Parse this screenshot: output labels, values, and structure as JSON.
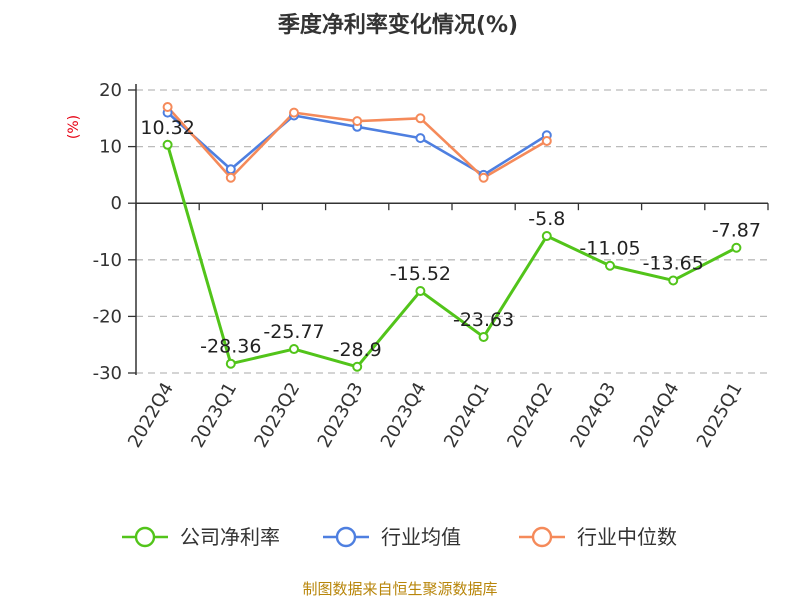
{
  "chart_data": {
    "type": "line",
    "title": "季度净利率变化情况(%)",
    "ylabel": "(%)",
    "xlabel": "",
    "ylim": [
      -30,
      20
    ],
    "yticks": [
      20,
      10,
      0,
      -10,
      -20,
      -30
    ],
    "categories": [
      "2022Q4",
      "2023Q1",
      "2023Q2",
      "2023Q3",
      "2023Q4",
      "2024Q1",
      "2024Q2",
      "2024Q3",
      "2024Q4",
      "2025Q1"
    ],
    "grid": true,
    "legend_position": "bottom",
    "series": [
      {
        "name": "公司净利率",
        "color": "#52c41a",
        "values": [
          10.32,
          -28.36,
          -25.77,
          -28.9,
          -15.52,
          -23.63,
          -5.8,
          -11.05,
          -13.65,
          -7.87
        ],
        "labels": [
          "10.32",
          "-28.36",
          "-25.77",
          "-28.9",
          "-15.52",
          "-23.63",
          "-5.8",
          "-11.05",
          "-13.65",
          "-7.87"
        ]
      },
      {
        "name": "行业均值",
        "color": "#4e7fe0",
        "values": [
          16,
          6,
          15.5,
          13.5,
          11.5,
          5,
          12,
          null,
          null,
          null
        ]
      },
      {
        "name": "行业中位数",
        "color": "#f58a5a",
        "values": [
          17,
          4.5,
          16,
          14.5,
          15,
          4.5,
          11,
          null,
          null,
          null
        ]
      }
    ]
  },
  "source_note": "制图数据来自恒生聚源数据库"
}
